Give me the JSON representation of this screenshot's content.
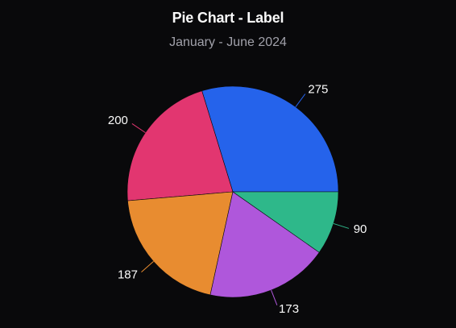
{
  "header": {
    "title": "Pie Chart - Label",
    "subtitle": "January - June 2024"
  },
  "chart_data": {
    "type": "pie",
    "title": "Pie Chart - Label",
    "subtitle": "January - June 2024",
    "slices": [
      {
        "value": 275,
        "label": "275",
        "color": "#2563eb"
      },
      {
        "value": 200,
        "label": "200",
        "color": "#e23670"
      },
      {
        "value": 187,
        "label": "187",
        "color": "#e88c30"
      },
      {
        "value": 173,
        "label": "173",
        "color": "#af57db"
      },
      {
        "value": 90,
        "label": "90",
        "color": "#2eb88a"
      }
    ],
    "start_angle_deg": 0,
    "direction": "counterclockwise",
    "legend": "none"
  }
}
